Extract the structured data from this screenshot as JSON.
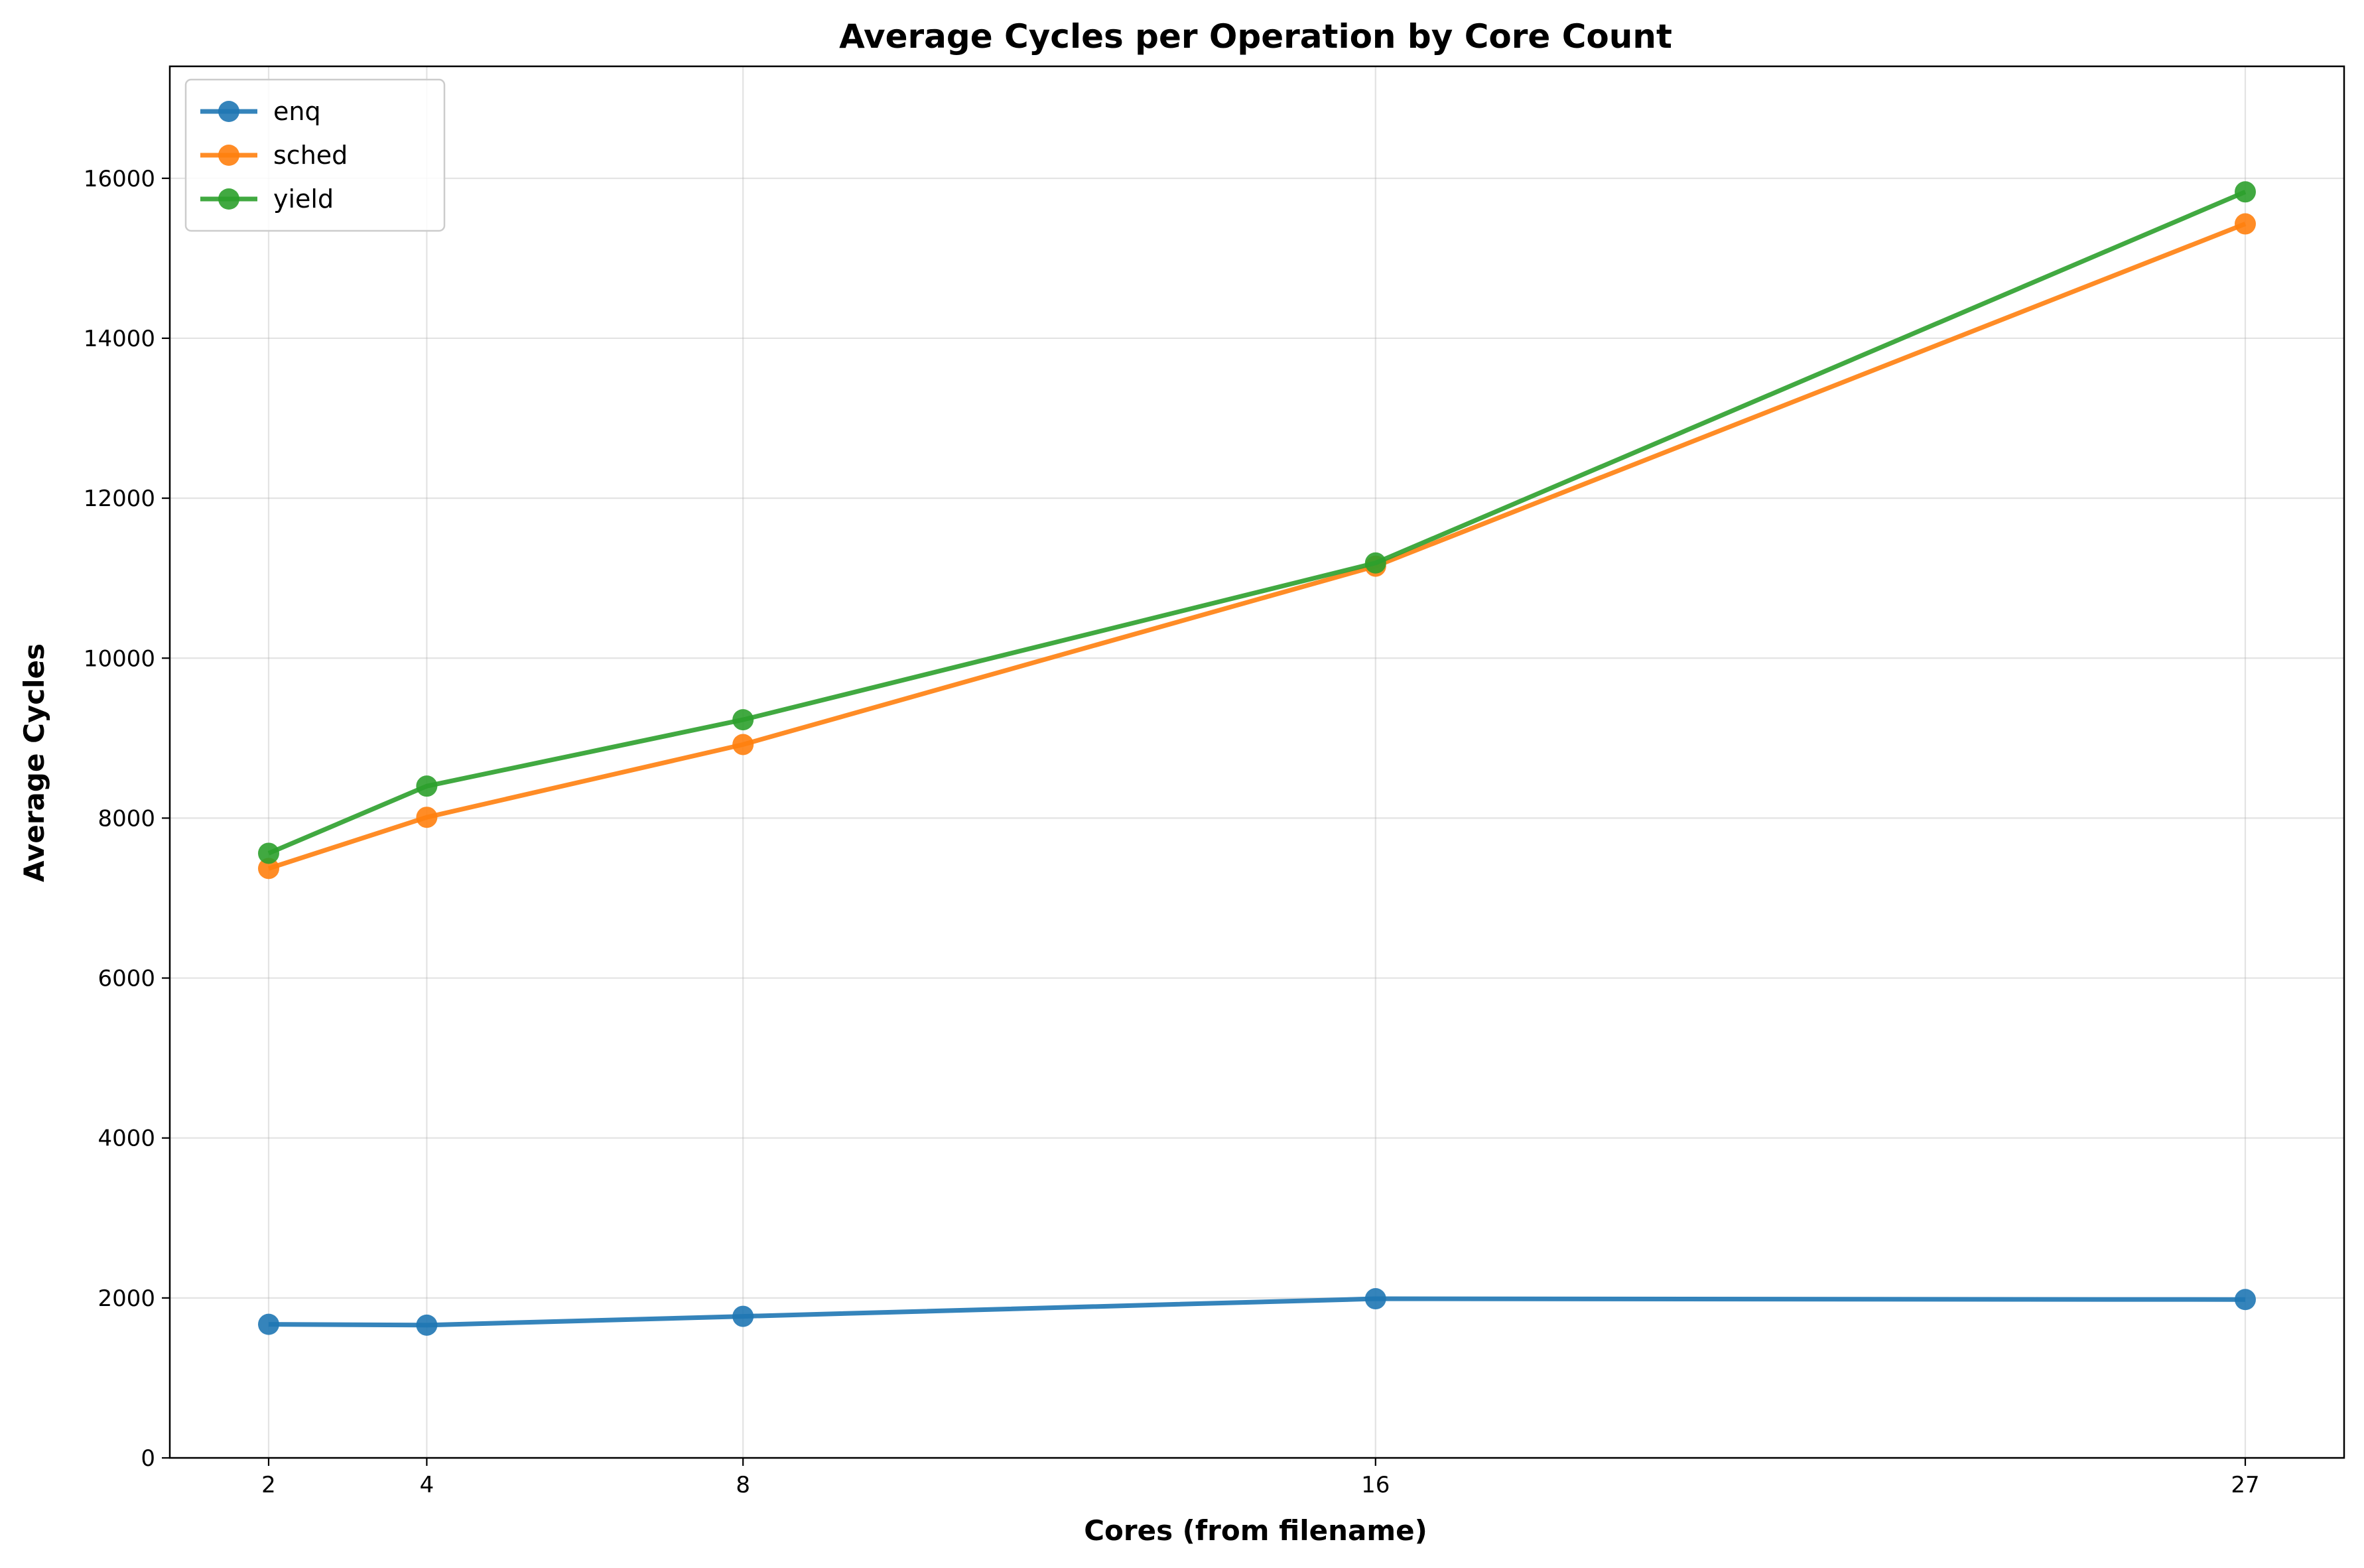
{
  "chart_data": {
    "type": "line",
    "title": "Average Cycles per Operation by Core Count",
    "xlabel": "Cores (from filename)",
    "ylabel": "Average Cycles",
    "x": [
      2,
      4,
      8,
      16,
      27
    ],
    "xlim": [
      0.75,
      28.25
    ],
    "ylim": [
      0,
      17400
    ],
    "x_ticks": [
      "2",
      "4",
      "8",
      "16",
      "27"
    ],
    "y_ticks": [
      0,
      2000,
      4000,
      6000,
      8000,
      10000,
      12000,
      14000,
      16000
    ],
    "grid": true,
    "legend_position": "top-left",
    "series": [
      {
        "name": "enq",
        "color": "#1f77b4",
        "values": [
          1670,
          1660,
          1770,
          1990,
          1980
        ]
      },
      {
        "name": "sched",
        "color": "#ff7f0e",
        "values": [
          7370,
          8010,
          8920,
          11150,
          15430
        ]
      },
      {
        "name": "yield",
        "color": "#2ca02c",
        "values": [
          7560,
          8400,
          9230,
          11190,
          15830
        ]
      }
    ]
  }
}
